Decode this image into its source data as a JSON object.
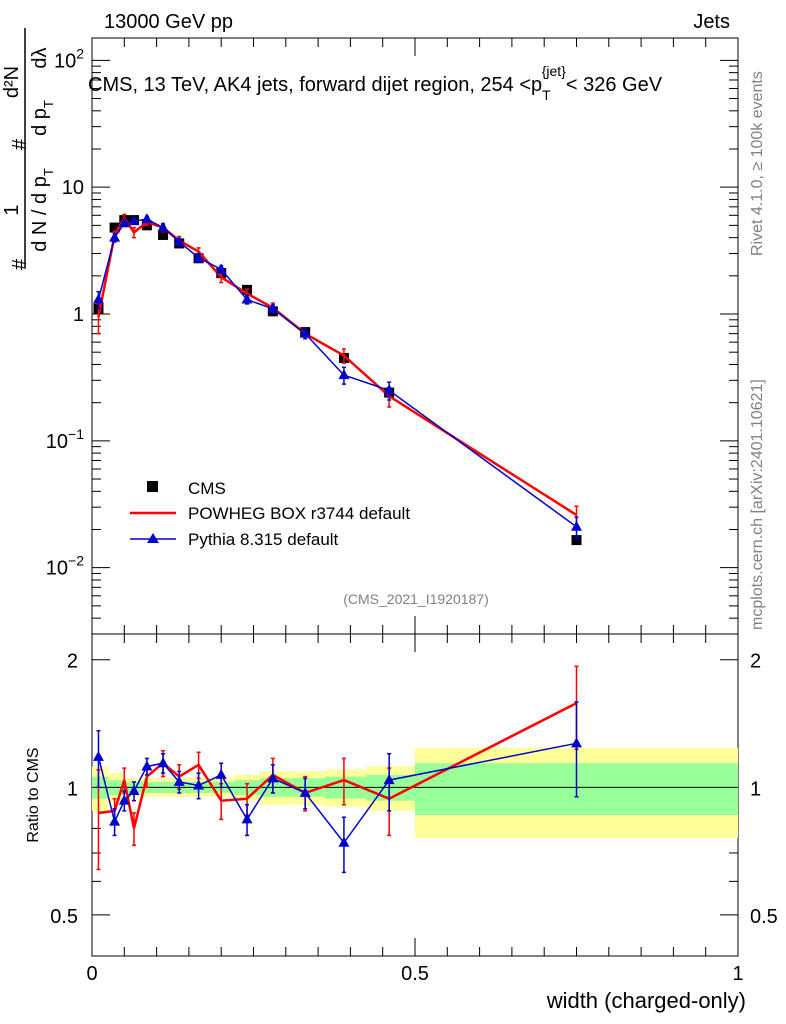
{
  "header": {
    "energy_label": "13000 GeV pp",
    "category_label": "Jets",
    "rivet_label": "Rivet 4.1.0, ≥ 100k events",
    "mcplots_label": "mcplots.cern.ch [arXiv:2401.10621]",
    "analysis_id": "(CMS_2021_I1920187)"
  },
  "chart_data": {
    "type": "scatter",
    "title": "CMS, 13 TeV, AK4 jets, forward dijet region, 254 <p_T^{jet}< 326 GeV",
    "title_parts": {
      "prefix": "CMS, 13 TeV, AK4 jets, forward dijet region, 254 <p",
      "sub": "T",
      "sup": "{jet}",
      "suffix": "< 326 GeV"
    },
    "ylabel": "1/(dN/dpT) d²N/(dpT dλ)",
    "ylabel_parts": {
      "hash": "#",
      "one": "1",
      "dn": "d N / d p",
      "t": "T",
      "d2n": "d²N",
      "dpdl": "d p",
      "dl": "dλ"
    },
    "xlabel": "width (charged-only)",
    "ratio_ylabel": "Ratio to CMS",
    "xlim": [
      0,
      1
    ],
    "ylim": [
      0.003,
      150
    ],
    "ratio_ylim": [
      0.4,
      2.3
    ],
    "x_ticks": [
      "0",
      "0.5",
      "1"
    ],
    "x_tick_values": [
      0,
      0.5,
      1
    ],
    "y_ticks": [
      {
        "v": 100,
        "base": "10",
        "exp": "2"
      },
      {
        "v": 10,
        "base": "10",
        "exp": ""
      },
      {
        "v": 1,
        "base": "1",
        "exp": ""
      },
      {
        "v": 0.1,
        "base": "10",
        "exp": "−1"
      },
      {
        "v": 0.01,
        "base": "10",
        "exp": "−2"
      }
    ],
    "ratio_y_ticks": [
      {
        "v": 2,
        "label": "2"
      },
      {
        "v": 1,
        "label": "1"
      },
      {
        "v": 0.5,
        "label": "0.5"
      }
    ],
    "bin_edges": [
      0,
      0.025,
      0.05,
      0.065,
      0.08,
      0.1,
      0.13,
      0.155,
      0.185,
      0.22,
      0.26,
      0.31,
      0.36,
      0.425,
      0.5,
      1.0
    ],
    "x": [
      0.01,
      0.035,
      0.05,
      0.065,
      0.085,
      0.11,
      0.135,
      0.165,
      0.2,
      0.24,
      0.28,
      0.33,
      0.39,
      0.46,
      0.75
    ],
    "data": {
      "name": "CMS",
      "values": [
        1.1,
        4.8,
        5.5,
        5.5,
        5.0,
        4.2,
        3.6,
        2.75,
        2.1,
        1.55,
        1.05,
        0.72,
        0.45,
        0.24,
        0.0165
      ]
    },
    "band_inner": [
      0.06,
      0.04,
      0.03,
      0.03,
      0.03,
      0.03,
      0.03,
      0.03,
      0.03,
      0.04,
      0.05,
      0.05,
      0.06,
      0.07,
      0.14
    ],
    "band_outer": [
      0.12,
      0.08,
      0.05,
      0.05,
      0.05,
      0.05,
      0.05,
      0.05,
      0.05,
      0.07,
      0.09,
      0.09,
      0.1,
      0.12,
      0.24
    ],
    "series": [
      {
        "name": "POWHEG BOX r3744 default",
        "color": "#ff0000",
        "marker": "none",
        "values": [
          0.95,
          4.2,
          5.7,
          4.4,
          5.3,
          4.8,
          3.8,
          3.1,
          1.95,
          1.45,
          1.12,
          0.7,
          0.47,
          0.225,
          0.026
        ],
        "errors": [
          0.25,
          0.3,
          0.4,
          0.4,
          0.3,
          0.35,
          0.28,
          0.22,
          0.18,
          0.12,
          0.1,
          0.06,
          0.06,
          0.04,
          0.0045
        ]
      },
      {
        "name": "Pythia 8.315 default",
        "color": "#0000cc",
        "marker": "triangle",
        "values": [
          1.3,
          4.0,
          5.2,
          5.4,
          5.6,
          4.8,
          3.7,
          2.78,
          2.25,
          1.3,
          1.1,
          0.7,
          0.33,
          0.25,
          0.021
        ],
        "errors": [
          0.2,
          0.3,
          0.3,
          0.3,
          0.3,
          0.3,
          0.22,
          0.2,
          0.15,
          0.1,
          0.08,
          0.06,
          0.05,
          0.04,
          0.004
        ]
      }
    ],
    "ratio_series": [
      {
        "name": "POWHEG BOX r3744 default",
        "values": [
          0.87,
          0.88,
          1.04,
          0.8,
          1.06,
          1.14,
          1.06,
          1.13,
          0.93,
          0.94,
          1.07,
          0.97,
          1.04,
          0.94,
          1.58
        ],
        "errors": [
          0.23,
          0.06,
          0.07,
          0.07,
          0.06,
          0.08,
          0.07,
          0.08,
          0.09,
          0.08,
          0.1,
          0.09,
          0.13,
          0.17,
          0.35
        ]
      },
      {
        "name": "Pythia 8.315 default",
        "values": [
          1.18,
          0.83,
          0.93,
          0.98,
          1.12,
          1.14,
          1.03,
          1.01,
          1.07,
          0.84,
          1.05,
          0.97,
          0.74,
          1.04,
          1.27
        ],
        "errors": [
          0.18,
          0.06,
          0.05,
          0.05,
          0.05,
          0.06,
          0.06,
          0.07,
          0.07,
          0.07,
          0.08,
          0.08,
          0.11,
          0.16,
          0.32
        ]
      }
    ],
    "legend_position": "middle-left"
  }
}
